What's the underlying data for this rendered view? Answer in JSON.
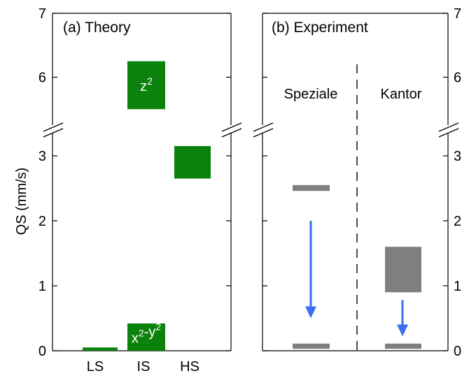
{
  "chart_data": [
    {
      "type": "bar",
      "panel_label": "(a) Theory",
      "ylabel": "QS (mm/s)",
      "broken_axis": true,
      "ylim_lower": [
        0,
        3.5
      ],
      "ylim_upper": [
        5,
        7
      ],
      "yticks": [
        "0",
        "1",
        "2",
        "3",
        "6",
        "7"
      ],
      "categories": [
        "LS",
        "IS",
        "HS"
      ],
      "color": "#0b820b",
      "ranges": [
        {
          "category": "LS",
          "low": 0.0,
          "high": 0.05,
          "label": ""
        },
        {
          "category": "IS",
          "low": 0.0,
          "high": 0.42,
          "label": "x2-y2"
        },
        {
          "category": "IS",
          "low": 5.5,
          "high": 6.25,
          "label": "z2"
        },
        {
          "category": "HS",
          "low": 2.65,
          "high": 3.15,
          "label": ""
        }
      ]
    },
    {
      "type": "bar",
      "panel_label": "(b) Experiment",
      "broken_axis": true,
      "yticks": [
        "0",
        "1",
        "2",
        "3",
        "6",
        "7"
      ],
      "categories": [
        "Speziale",
        "Kantor"
      ],
      "color": "#7f7f7f",
      "arrow_color": "#3b6ef0",
      "ranges": [
        {
          "category": "Speziale",
          "low": 2.46,
          "high": 2.55
        },
        {
          "category": "Speziale",
          "low": 0.03,
          "high": 0.11
        },
        {
          "category": "Kantor",
          "low": 0.9,
          "high": 1.6
        },
        {
          "category": "Kantor",
          "low": 0.03,
          "high": 0.11
        }
      ],
      "arrows": [
        {
          "category": "Speziale",
          "from": 2.0,
          "to": 0.5
        },
        {
          "category": "Kantor",
          "from": 0.78,
          "to": 0.22
        }
      ]
    }
  ]
}
